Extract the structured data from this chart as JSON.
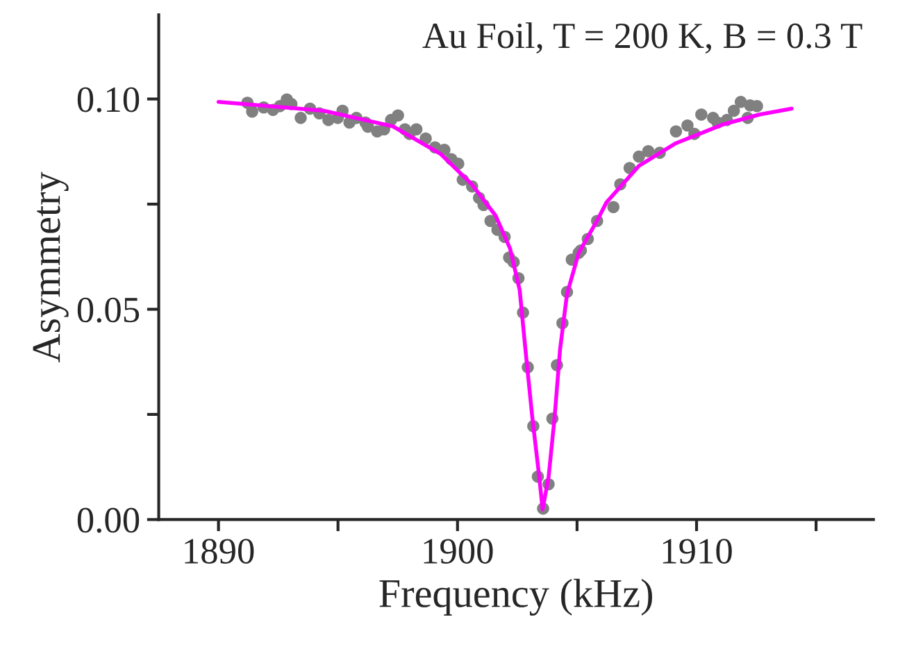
{
  "chart_data": {
    "type": "scatter",
    "xlabel": "Frequency (kHz)",
    "ylabel": "Asymmetry",
    "annotations": [
      "Au Foil, T = 200 K, B = 0.3 T"
    ],
    "xlim": [
      1887.5,
      1917.4
    ],
    "ylim": [
      0,
      0.12
    ],
    "xticks": [
      1890,
      {
        "value": 1895,
        "label": null
      },
      1900,
      {
        "value": 1905,
        "label": null
      },
      1910,
      {
        "value": 1915,
        "label": null
      }
    ],
    "yticks": [
      {
        "value": 0,
        "label": "0.00"
      },
      {
        "value": 0.025,
        "label": null
      },
      {
        "value": 0.05,
        "label": "0.05"
      },
      {
        "value": 0.075,
        "label": null
      },
      {
        "value": 0.1,
        "label": "0.10"
      }
    ],
    "grid": false,
    "series": [
      {
        "color": "#808080",
        "marker": "circle",
        "x": [
          1891.21,
          1891.41,
          1891.89,
          1892.28,
          1892.57,
          1892.86,
          1893.05,
          1893.44,
          1893.83,
          1894.22,
          1894.6,
          1894.99,
          1895.19,
          1895.48,
          1895.77,
          1896.15,
          1896.25,
          1896.64,
          1896.93,
          1897.22,
          1897.51,
          1897.8,
          1897.99,
          1898.28,
          1898.67,
          1899.06,
          1899.45,
          1899.74,
          1900.03,
          1900.22,
          1900.61,
          1900.9,
          1901.09,
          1901.38,
          1901.67,
          1901.97,
          1902.16,
          1902.35,
          1902.55,
          1902.74,
          1902.94,
          1903.17,
          1903.36,
          1903.58,
          1903.81,
          1903.97,
          1904.16,
          1904.39,
          1904.58,
          1904.78,
          1905.07,
          1905.16,
          1905.45,
          1905.84,
          1906.52,
          1906.81,
          1907.2,
          1907.59,
          1907.98,
          1908.46,
          1909.14,
          1909.62,
          1909.91,
          1910.2,
          1910.69,
          1910.88,
          1911.27,
          1911.56,
          1911.85,
          1912.14,
          1912.24,
          1912.53
        ],
        "values": [
          0.0991,
          0.097,
          0.098,
          0.0974,
          0.0983,
          0.0999,
          0.0988,
          0.0955,
          0.0977,
          0.0966,
          0.095,
          0.0955,
          0.0972,
          0.0944,
          0.0955,
          0.0944,
          0.0934,
          0.0923,
          0.0928,
          0.095,
          0.0961,
          0.0928,
          0.0917,
          0.0928,
          0.0906,
          0.0885,
          0.0879,
          0.0857,
          0.0846,
          0.0808,
          0.0792,
          0.0765,
          0.0748,
          0.071,
          0.0689,
          0.0672,
          0.0623,
          0.0612,
          0.0574,
          0.0492,
          0.0362,
          0.0222,
          0.0102,
          0.0026,
          0.0084,
          0.024,
          0.0367,
          0.0467,
          0.0541,
          0.0618,
          0.0634,
          0.064,
          0.0667,
          0.071,
          0.0743,
          0.0797,
          0.0836,
          0.0863,
          0.0876,
          0.0872,
          0.0923,
          0.0937,
          0.0917,
          0.0963,
          0.0955,
          0.0944,
          0.095,
          0.0972,
          0.0993,
          0.0955,
          0.0985,
          0.0983
        ]
      },
      {
        "type": "line",
        "color": "#ff00ff",
        "line_style": "solid",
        "x": [
          1890.0,
          1894.4,
          1897.3,
          1899.3,
          1900.6,
          1901.6,
          1902.2,
          1902.6,
          1902.84,
          1903.13,
          1903.42,
          1903.56,
          1903.81,
          1904.06,
          1904.29,
          1904.58,
          1905.07,
          1905.84,
          1906.23,
          1907.59,
          1909.14,
          1911.08,
          1912.63,
          1913.98
        ],
        "values": [
          0.0993,
          0.0972,
          0.0935,
          0.0869,
          0.0797,
          0.0722,
          0.0644,
          0.0546,
          0.0405,
          0.0242,
          0.0101,
          0.0024,
          0.0101,
          0.0242,
          0.0405,
          0.0536,
          0.0634,
          0.0711,
          0.0754,
          0.0841,
          0.0895,
          0.0939,
          0.0963,
          0.0977
        ]
      }
    ]
  }
}
